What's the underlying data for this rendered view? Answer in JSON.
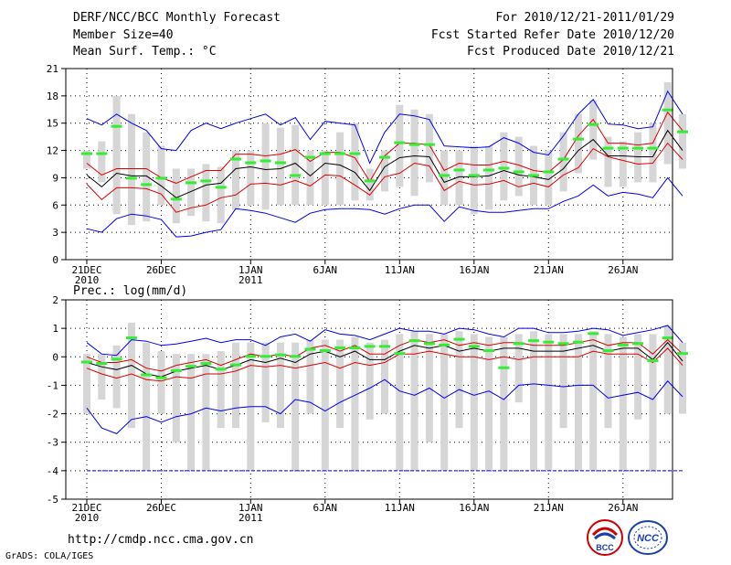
{
  "header": {
    "title": "DERF/NCC/BCC Monthly Forecast",
    "member_size": "Member Size=40",
    "variable": "Mean Surf. Temp.: °C",
    "period": "For 2010/12/21-2011/01/29",
    "started": "Fcst Started Refer Date 2010/12/20",
    "produced": "Fcst Produced Date 2010/12/21"
  },
  "footer": {
    "url": "http://cmdp.ncc.cma.gov.cn",
    "credit": "GrADS: COLA/IGES",
    "logo_bcc": "BCC",
    "logo_ncc": "NCC"
  },
  "colors": {
    "mean": "#000000",
    "spread": "#dd0000",
    "extreme": "#0000ee",
    "box": "#d6d6d6",
    "median": "#33ee33"
  },
  "chart_data": [
    {
      "type": "box",
      "title": "Mean Surf. Temp.: °C",
      "ylim": [
        0,
        21
      ],
      "yticks": [
        0,
        3,
        6,
        9,
        12,
        15,
        18,
        21
      ],
      "xticks": [
        {
          "day": 0,
          "label": "21DEC",
          "sub": "2010"
        },
        {
          "day": 5,
          "label": "26DEC",
          "sub": ""
        },
        {
          "day": 11,
          "label": "1JAN",
          "sub": "2011"
        },
        {
          "day": 16,
          "label": "6JAN",
          "sub": ""
        },
        {
          "day": 21,
          "label": "11JAN",
          "sub": ""
        },
        {
          "day": 26,
          "label": "16JAN",
          "sub": ""
        },
        {
          "day": 31,
          "label": "21JAN",
          "sub": ""
        },
        {
          "day": 36,
          "label": "26JAN",
          "sub": ""
        }
      ],
      "max": [
        15.5,
        14.8,
        16.0,
        15.0,
        14.2,
        12.2,
        12.0,
        14.2,
        15.0,
        14.4,
        15.0,
        15.5,
        16.0,
        14.8,
        15.6,
        13.2,
        15.2,
        15.0,
        14.8,
        10.6,
        14.0,
        16.0,
        15.8,
        15.4,
        12.5,
        12.4,
        12.3,
        12.4,
        13.4,
        12.8,
        11.8,
        11.5,
        13.6,
        16.0,
        17.6,
        14.9,
        14.8,
        14.4,
        14.6,
        18.5,
        16.0
      ],
      "p_high": [
        8.3,
        6.6,
        7.9,
        7.9,
        7.8,
        7.2,
        5.2,
        5.7,
        6.0,
        6.8,
        7.1,
        8.3,
        8.4,
        8.2,
        8.7,
        8.1,
        9.3,
        9.2,
        8.2,
        7.1,
        9.1,
        9.5,
        10.6,
        10.3,
        7.6,
        8.6,
        8.2,
        8.3,
        8.7,
        8.0,
        8.4,
        8.0,
        9.3,
        10.1,
        12.2,
        11.3,
        10.9,
        10.5,
        10.6,
        12.8,
        11.0
      ],
      "mean": [
        9.3,
        8.0,
        9.5,
        9.2,
        9.2,
        8.1,
        6.8,
        7.5,
        8.2,
        8.4,
        10.0,
        10.2,
        9.9,
        10.0,
        10.6,
        9.2,
        10.6,
        10.4,
        9.6,
        7.6,
        10.2,
        11.2,
        11.4,
        11.3,
        8.5,
        9.1,
        9.1,
        9.2,
        9.8,
        9.3,
        9.1,
        8.8,
        10.0,
        12.0,
        13.2,
        11.4,
        11.4,
        11.3,
        11.3,
        14.2,
        12.0
      ],
      "p_low": [
        10.6,
        9.3,
        10.0,
        10.0,
        10.0,
        9.0,
        8.4,
        9.1,
        9.8,
        9.8,
        11.6,
        11.6,
        11.4,
        11.6,
        12.1,
        10.8,
        11.8,
        11.8,
        11.2,
        8.6,
        11.4,
        12.8,
        12.8,
        12.6,
        9.8,
        10.6,
        10.4,
        10.4,
        10.8,
        10.4,
        9.8,
        9.6,
        11.0,
        13.6,
        15.4,
        12.8,
        12.8,
        12.6,
        12.8,
        16.2,
        14.2
      ],
      "min": [
        3.4,
        3.0,
        4.5,
        5.0,
        4.8,
        4.4,
        2.5,
        2.6,
        3.0,
        3.3,
        5.6,
        5.4,
        5.1,
        4.6,
        4.1,
        5.1,
        5.5,
        5.6,
        5.6,
        5.5,
        5.0,
        5.6,
        6.0,
        6.0,
        4.2,
        5.8,
        5.4,
        5.2,
        5.2,
        5.4,
        5.6,
        5.6,
        6.4,
        7.0,
        8.2,
        7.0,
        7.4,
        7.2,
        6.8,
        9.0,
        7.0
      ],
      "box_top": [
        12.0,
        13.0,
        18.0,
        16.0,
        14.0,
        12.5,
        10.0,
        10.0,
        10.5,
        10.2,
        12.0,
        12.0,
        15.0,
        14.5,
        14.8,
        12.0,
        12.0,
        14.0,
        15.0,
        10.0,
        12.0,
        17.0,
        16.5,
        16.0,
        12.0,
        12.0,
        12.5,
        12.5,
        14.0,
        13.5,
        12.5,
        12.0,
        14.0,
        16.0,
        17.5,
        13.5,
        13.0,
        14.0,
        15.0,
        19.5,
        16.0
      ],
      "box_bottom": [
        10.0,
        8.5,
        5.0,
        3.8,
        4.2,
        6.0,
        4.0,
        4.8,
        4.2,
        4.0,
        5.5,
        6.0,
        5.5,
        6.0,
        6.0,
        6.0,
        6.0,
        6.0,
        6.5,
        6.5,
        7.5,
        8.0,
        7.0,
        8.5,
        6.0,
        6.0,
        5.0,
        5.5,
        6.5,
        7.0,
        6.0,
        6.0,
        7.5,
        9.5,
        11.0,
        8.0,
        8.0,
        8.5,
        8.5,
        10.5,
        10.0
      ],
      "median": [
        11.6,
        11.6,
        14.6,
        8.9,
        8.2,
        8.9,
        6.6,
        8.4,
        8.6,
        7.9,
        11.0,
        10.6,
        10.8,
        10.6,
        9.2,
        11.2,
        11.6,
        11.6,
        11.6,
        8.6,
        11.2,
        12.8,
        12.6,
        12.6,
        9.2,
        9.8,
        9.2,
        9.8,
        10.0,
        9.6,
        9.2,
        9.6,
        11.0,
        13.2,
        14.8,
        12.2,
        12.2,
        12.2,
        12.2,
        16.4,
        14.0
      ]
    },
    {
      "type": "box",
      "title": "Prec.: log(mm/d)",
      "ylim": [
        -5,
        2
      ],
      "yticks": [
        -5,
        -4,
        -3,
        -2,
        -1,
        0,
        1,
        2
      ],
      "baseline": -4,
      "xticks": [
        {
          "day": 0,
          "label": "21DEC",
          "sub": "2010"
        },
        {
          "day": 5,
          "label": "26DEC",
          "sub": ""
        },
        {
          "day": 11,
          "label": "1JAN",
          "sub": "2011"
        },
        {
          "day": 16,
          "label": "6JAN",
          "sub": ""
        },
        {
          "day": 21,
          "label": "11JAN",
          "sub": ""
        },
        {
          "day": 26,
          "label": "16JAN",
          "sub": ""
        },
        {
          "day": 31,
          "label": "21JAN",
          "sub": ""
        },
        {
          "day": 36,
          "label": "26JAN",
          "sub": ""
        }
      ],
      "max": [
        0.5,
        0.1,
        0.05,
        0.6,
        0.55,
        0.4,
        0.45,
        0.55,
        0.65,
        0.5,
        0.6,
        0.6,
        0.4,
        0.7,
        0.8,
        0.55,
        0.95,
        0.8,
        0.75,
        0.6,
        0.8,
        1.0,
        0.9,
        0.9,
        0.8,
        1.0,
        0.95,
        0.8,
        0.7,
        1.0,
        1.0,
        0.85,
        0.85,
        0.9,
        1.0,
        0.95,
        0.75,
        0.85,
        0.95,
        1.1,
        0.5
      ],
      "p_high": [
        -0.4,
        -0.6,
        -0.75,
        -0.6,
        -0.8,
        -0.85,
        -0.7,
        -0.75,
        -0.6,
        -0.6,
        -0.5,
        -0.3,
        -0.35,
        -0.3,
        -0.4,
        -0.3,
        -0.2,
        -0.4,
        -0.2,
        -0.3,
        -0.2,
        0.1,
        0.1,
        0.2,
        0.1,
        0.0,
        0.0,
        -0.1,
        0.0,
        -0.1,
        0.0,
        0.0,
        0.0,
        0.0,
        0.2,
        0.1,
        0.1,
        0.1,
        -0.2,
        0.3,
        -0.3
      ],
      "mean": [
        -0.2,
        -0.35,
        -0.45,
        -0.3,
        -0.6,
        -0.7,
        -0.5,
        -0.4,
        -0.3,
        -0.45,
        -0.3,
        -0.1,
        -0.2,
        -0.05,
        -0.2,
        0.1,
        0.2,
        0.0,
        0.2,
        -0.1,
        -0.1,
        0.2,
        0.4,
        0.3,
        0.4,
        0.2,
        0.3,
        0.2,
        0.3,
        0.3,
        0.2,
        0.2,
        0.2,
        0.3,
        0.4,
        0.2,
        0.3,
        0.3,
        -0.1,
        0.5,
        -0.15
      ],
      "p_low": [
        0.0,
        -0.2,
        -0.2,
        -0.1,
        -0.4,
        -0.5,
        -0.3,
        -0.2,
        -0.1,
        -0.3,
        -0.1,
        0.1,
        0.0,
        0.1,
        0.0,
        0.3,
        0.4,
        0.2,
        0.4,
        0.1,
        0.1,
        0.4,
        0.6,
        0.5,
        0.6,
        0.4,
        0.5,
        0.4,
        0.5,
        0.5,
        0.4,
        0.4,
        0.4,
        0.5,
        0.6,
        0.4,
        0.5,
        0.5,
        0.1,
        0.6,
        0.1
      ],
      "min": [
        -1.8,
        -2.5,
        -2.7,
        -2.2,
        -2.1,
        -2.3,
        -2.1,
        -2.0,
        -1.8,
        -1.9,
        -1.8,
        -1.75,
        -1.75,
        -2.0,
        -1.5,
        -1.6,
        -1.9,
        -1.6,
        -1.35,
        -1.1,
        -0.8,
        -1.2,
        -1.35,
        -1.1,
        -1.45,
        -1.15,
        -1.35,
        -1.2,
        -1.5,
        -1.0,
        -0.95,
        -1.0,
        -1.05,
        -1.0,
        -1.0,
        -1.45,
        -1.35,
        -1.25,
        -1.5,
        -0.85,
        -1.4
      ],
      "box_top": [
        0.1,
        0.1,
        0.4,
        1.2,
        0.5,
        0.2,
        0.1,
        0.1,
        0.1,
        0.2,
        0.5,
        0.5,
        0.5,
        0.5,
        0.5,
        0.6,
        0.6,
        0.6,
        0.7,
        0.5,
        0.6,
        0.8,
        0.9,
        0.8,
        0.8,
        0.9,
        0.8,
        0.7,
        0.7,
        0.8,
        0.9,
        0.8,
        0.8,
        0.8,
        0.9,
        0.8,
        0.7,
        0.8,
        0.8,
        1.1,
        0.5
      ],
      "box_bottom": [
        -2.0,
        -1.5,
        -1.8,
        -2.5,
        -4.0,
        -2.0,
        -3.0,
        -4.0,
        -4.0,
        -2.5,
        -2.5,
        -4.0,
        -2.3,
        -2.5,
        -4.0,
        -2.0,
        -4.0,
        -2.5,
        -4.0,
        -2.2,
        -2.0,
        -4.0,
        -4.0,
        -3.0,
        -4.0,
        -2.5,
        -4.0,
        -4.0,
        -4.0,
        -1.6,
        -4.0,
        -4.0,
        -2.5,
        -4.0,
        -4.0,
        -2.5,
        -4.0,
        -2.2,
        -4.0,
        -2.0,
        -2.0
      ],
      "median": [
        -0.2,
        -0.25,
        -0.1,
        0.65,
        -0.65,
        -0.75,
        -0.5,
        -0.35,
        -0.25,
        -0.45,
        -0.3,
        0.0,
        0.0,
        0.05,
        0.0,
        0.25,
        0.2,
        0.3,
        0.3,
        0.35,
        0.35,
        0.1,
        0.55,
        0.45,
        0.4,
        0.6,
        0.35,
        0.2,
        -0.4,
        0.45,
        0.55,
        0.5,
        0.45,
        0.5,
        0.8,
        0.2,
        0.4,
        0.45,
        -0.15,
        0.65,
        0.1
      ]
    }
  ]
}
